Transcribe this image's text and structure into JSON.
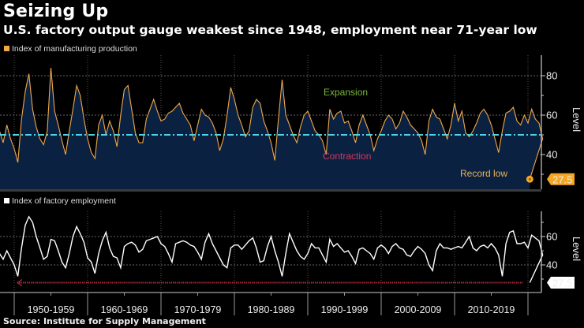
{
  "title": "Seizing Up",
  "subtitle": "U.S. factory output gauge weakest since 1948, employment near 71-year low",
  "source": "Source: Institute for Supply Management",
  "colors": {
    "production_line": "#f0a84a",
    "production_fill": "#0b2142",
    "threshold_line": "#4fd3e6",
    "employment_line": "#ffffff",
    "record_low_arrow": "#b0283a",
    "expansion": "#7ab83a",
    "contraction": "#d8355c",
    "record_low": "#e8b458"
  },
  "chart_data": [
    {
      "type": "area",
      "title": "Index of manufacturing production",
      "legend": "Index of manufacturing production",
      "ylabel": "Level",
      "ylim": [
        20,
        87
      ],
      "yticks": [
        40,
        60,
        80
      ],
      "threshold": 50,
      "grid": true,
      "x_start": 1948.0,
      "x_step": 0.5,
      "values": [
        52,
        46,
        55,
        48,
        43,
        36,
        58,
        72,
        81,
        63,
        54,
        48,
        45,
        52,
        84,
        62,
        55,
        47,
        40,
        52,
        63,
        75,
        70,
        58,
        48,
        41,
        38,
        55,
        60,
        50,
        57,
        52,
        44,
        60,
        73,
        75,
        63,
        51,
        46,
        46,
        58,
        63,
        68,
        62,
        57,
        58,
        61,
        62,
        64,
        66,
        61,
        58,
        55,
        47,
        55,
        63,
        60,
        59,
        56,
        51,
        42,
        48,
        60,
        74,
        68,
        60,
        55,
        49,
        52,
        64,
        68,
        66,
        57,
        52,
        46,
        37,
        58,
        78,
        60,
        55,
        50,
        46,
        54,
        60,
        62,
        57,
        52,
        50,
        47,
        40,
        63,
        58,
        61,
        62,
        56,
        57,
        52,
        46,
        55,
        60,
        55,
        50,
        42,
        48,
        52,
        57,
        60,
        58,
        53,
        56,
        62,
        59,
        55,
        53,
        51,
        47,
        40,
        57,
        63,
        59,
        58,
        53,
        48,
        55,
        66,
        57,
        62,
        51,
        49,
        52,
        56,
        61,
        63,
        60,
        55,
        48,
        41,
        52,
        61,
        62,
        64,
        57,
        55,
        60,
        56,
        63,
        58,
        56,
        48,
        27.5
      ],
      "last_value": 27.5,
      "last_label": "27.5",
      "annotations": [
        "Expansion",
        "Contraction",
        "Record low"
      ]
    },
    {
      "type": "line",
      "title": "Index of factory employment",
      "legend": "Index of factory employment",
      "ylabel": "Level",
      "ylim": [
        20,
        76
      ],
      "yticks": [
        40,
        60
      ],
      "grid": true,
      "x_start": 1948.0,
      "x_step": 0.5,
      "values": [
        48,
        44,
        50,
        45,
        40,
        32,
        52,
        68,
        74,
        70,
        60,
        52,
        44,
        46,
        58,
        57,
        50,
        42,
        38,
        48,
        60,
        67,
        62,
        56,
        45,
        42,
        34,
        48,
        57,
        63,
        52,
        46,
        45,
        38,
        53,
        55,
        56,
        54,
        49,
        51,
        57,
        58,
        59,
        60,
        55,
        53,
        48,
        42,
        55,
        56,
        57,
        56,
        54,
        53,
        49,
        44,
        56,
        62,
        55,
        50,
        45,
        40,
        38,
        52,
        54,
        54,
        51,
        54,
        57,
        59,
        52,
        42,
        43,
        53,
        60,
        50,
        42,
        32,
        48,
        62,
        56,
        50,
        46,
        44,
        48,
        55,
        52,
        52,
        47,
        42,
        58,
        53,
        55,
        52,
        49,
        50,
        46,
        41,
        51,
        52,
        50,
        48,
        44,
        52,
        54,
        52,
        48,
        53,
        55,
        52,
        51,
        47,
        46,
        50,
        53,
        51,
        48,
        40,
        36,
        50,
        55,
        52,
        52,
        51,
        52,
        53,
        52,
        56,
        60,
        52,
        50,
        53,
        54,
        52,
        55,
        52,
        47,
        32,
        55,
        63,
        64,
        55,
        55,
        56,
        52,
        61,
        59,
        57,
        47,
        27.5
      ],
      "last_value": 27.5,
      "last_label": "27.5"
    }
  ],
  "x_axis": {
    "labels": [
      "1950-1959",
      "1960-1969",
      "1970-1979",
      "1980-1989",
      "1990-1999",
      "2000-2009",
      "2010-2019"
    ]
  }
}
